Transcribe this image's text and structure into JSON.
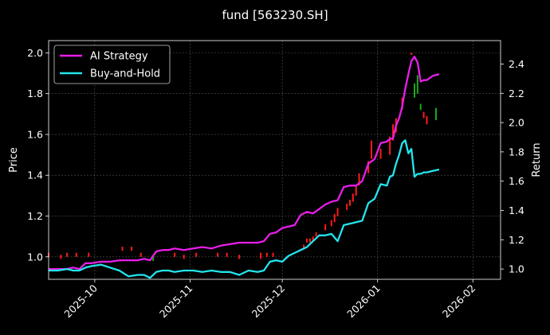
{
  "chart_data": {
    "type": "line",
    "title": "fund [563230.SH]",
    "ylabel_left": "Price",
    "ylabel_right": "Return",
    "xlim": [
      "2025-09-16",
      "2026-02-10"
    ],
    "ylim_left": [
      0.89,
      2.06
    ],
    "ylim_right": [
      0.93,
      2.56
    ],
    "left_ticks": [
      1.0,
      1.2,
      1.4,
      1.6,
      1.8,
      2.0
    ],
    "left_tick_labels": [
      "1.0",
      "1.2",
      "1.4",
      "1.6",
      "1.8",
      "2.0"
    ],
    "right_ticks": [
      1.0,
      1.2,
      1.4,
      1.6,
      1.8,
      2.0,
      2.2,
      2.4
    ],
    "right_tick_labels": [
      "1.0",
      "1.2",
      "1.4",
      "1.6",
      "1.8",
      "2.0",
      "2.2",
      "2.4"
    ],
    "x_ticks": [
      "2025-10-01",
      "2025-11-01",
      "2025-12-01",
      "2026-01-01",
      "2026-02-01"
    ],
    "x_tick_labels": [
      "2025-10",
      "2025-11",
      "2025-12",
      "2026-01",
      "2026-02"
    ],
    "grid": true,
    "legend_position": "top-left",
    "colors": {
      "background": "#000000",
      "text": "#ffffff",
      "grid": "#555555",
      "ai_strategy": "#e81ee8",
      "buy_and_hold": "#22e5ee",
      "candle_up": "#ff1a1a",
      "candle_down": "#1aa81a"
    },
    "series": [
      {
        "name": "AI Strategy",
        "axis": "right",
        "x": [
          "2025-09-16",
          "2025-09-19",
          "2025-09-22",
          "2025-09-24",
          "2025-09-26",
          "2025-09-28",
          "2025-09-30",
          "2025-10-03",
          "2025-10-06",
          "2025-10-09",
          "2025-10-12",
          "2025-10-15",
          "2025-10-17",
          "2025-10-19",
          "2025-10-21",
          "2025-10-23",
          "2025-10-25",
          "2025-10-27",
          "2025-10-30",
          "2025-11-02",
          "2025-11-05",
          "2025-11-08",
          "2025-11-11",
          "2025-11-14",
          "2025-11-17",
          "2025-11-20",
          "2025-11-23",
          "2025-11-25",
          "2025-11-27",
          "2025-11-29",
          "2025-12-01",
          "2025-12-03",
          "2025-12-05",
          "2025-12-07",
          "2025-12-09",
          "2025-12-11",
          "2025-12-13",
          "2025-12-15",
          "2025-12-17",
          "2025-12-19",
          "2025-12-21",
          "2025-12-23",
          "2025-12-25",
          "2025-12-27",
          "2025-12-29",
          "2025-12-31",
          "2026-01-02",
          "2026-01-04",
          "2026-01-05",
          "2026-01-06",
          "2026-01-07",
          "2026-01-08",
          "2026-01-09",
          "2026-01-10",
          "2026-01-11",
          "2026-01-12",
          "2026-01-13",
          "2026-01-14",
          "2026-01-15",
          "2026-01-16",
          "2026-01-17",
          "2026-01-19",
          "2026-01-21"
        ],
        "values": [
          1.0,
          1.0,
          1.0,
          1.01,
          1.0,
          1.04,
          1.04,
          1.05,
          1.05,
          1.06,
          1.06,
          1.06,
          1.07,
          1.06,
          1.12,
          1.13,
          1.13,
          1.14,
          1.13,
          1.14,
          1.15,
          1.14,
          1.16,
          1.17,
          1.18,
          1.18,
          1.18,
          1.19,
          1.24,
          1.25,
          1.28,
          1.29,
          1.3,
          1.37,
          1.39,
          1.38,
          1.41,
          1.44,
          1.46,
          1.47,
          1.56,
          1.57,
          1.57,
          1.6,
          1.72,
          1.75,
          1.86,
          1.87,
          1.89,
          1.89,
          1.98,
          2.03,
          2.11,
          2.23,
          2.33,
          2.42,
          2.45,
          2.41,
          2.28,
          2.29,
          2.29,
          2.32,
          2.33
        ]
      },
      {
        "name": "Buy-and-Hold",
        "axis": "right",
        "x": [
          "2025-09-16",
          "2025-09-19",
          "2025-09-22",
          "2025-09-24",
          "2025-09-26",
          "2025-09-28",
          "2025-09-30",
          "2025-10-03",
          "2025-10-06",
          "2025-10-09",
          "2025-10-12",
          "2025-10-15",
          "2025-10-17",
          "2025-10-19",
          "2025-10-21",
          "2025-10-23",
          "2025-10-25",
          "2025-10-27",
          "2025-10-30",
          "2025-11-02",
          "2025-11-05",
          "2025-11-08",
          "2025-11-11",
          "2025-11-14",
          "2025-11-17",
          "2025-11-20",
          "2025-11-23",
          "2025-11-25",
          "2025-11-27",
          "2025-11-29",
          "2025-12-01",
          "2025-12-03",
          "2025-12-05",
          "2025-12-07",
          "2025-12-09",
          "2025-12-11",
          "2025-12-13",
          "2025-12-15",
          "2025-12-17",
          "2025-12-19",
          "2025-12-21",
          "2025-12-23",
          "2025-12-25",
          "2025-12-27",
          "2025-12-29",
          "2025-12-31",
          "2026-01-02",
          "2026-01-04",
          "2026-01-05",
          "2026-01-06",
          "2026-01-07",
          "2026-01-08",
          "2026-01-09",
          "2026-01-10",
          "2026-01-11",
          "2026-01-12",
          "2026-01-13",
          "2026-01-14",
          "2026-01-15",
          "2026-01-16",
          "2026-01-17",
          "2026-01-19",
          "2026-01-21"
        ],
        "values": [
          0.99,
          0.99,
          1.0,
          0.99,
          0.99,
          1.01,
          1.02,
          1.03,
          1.01,
          0.99,
          0.95,
          0.96,
          0.96,
          0.94,
          0.98,
          0.99,
          0.99,
          0.98,
          0.99,
          0.99,
          0.98,
          0.99,
          0.98,
          0.98,
          0.96,
          0.99,
          0.98,
          0.99,
          1.05,
          1.06,
          1.05,
          1.09,
          1.11,
          1.13,
          1.15,
          1.19,
          1.23,
          1.23,
          1.24,
          1.19,
          1.3,
          1.31,
          1.32,
          1.33,
          1.45,
          1.48,
          1.58,
          1.57,
          1.63,
          1.64,
          1.72,
          1.78,
          1.86,
          1.88,
          1.79,
          1.82,
          1.63,
          1.65,
          1.65,
          1.66,
          1.66,
          1.67,
          1.68
        ]
      }
    ],
    "candles": {
      "axis": "left",
      "x": [
        "2025-09-16",
        "2025-09-20",
        "2025-09-22",
        "2025-09-25",
        "2025-09-29",
        "2025-10-10",
        "2025-10-13",
        "2025-10-16",
        "2025-10-20",
        "2025-10-27",
        "2025-10-30",
        "2025-11-03",
        "2025-11-10",
        "2025-11-13",
        "2025-11-17",
        "2025-11-24",
        "2025-11-26",
        "2025-11-28",
        "2025-12-08",
        "2025-12-09",
        "2025-12-10",
        "2025-12-11",
        "2025-12-12",
        "2025-12-15",
        "2025-12-17",
        "2025-12-18",
        "2025-12-19",
        "2025-12-22",
        "2025-12-23",
        "2025-12-24",
        "2025-12-25",
        "2025-12-26",
        "2025-12-29",
        "2025-12-30",
        "2026-01-02",
        "2026-01-05",
        "2026-01-06",
        "2026-01-07",
        "2026-01-09",
        "2026-01-12",
        "2026-01-13",
        "2026-01-14",
        "2026-01-15",
        "2026-01-16",
        "2026-01-17",
        "2026-01-20"
      ],
      "open": [
        1.0,
        0.99,
        1.0,
        1.0,
        1.0,
        1.03,
        1.03,
        1.0,
        1.0,
        1.0,
        0.99,
        1.0,
        1.0,
        1.0,
        0.99,
        0.99,
        1.0,
        1.0,
        1.04,
        1.07,
        1.07,
        1.08,
        1.1,
        1.13,
        1.15,
        1.17,
        1.2,
        1.23,
        1.25,
        1.27,
        1.3,
        1.35,
        1.41,
        1.48,
        1.48,
        1.5,
        1.57,
        1.61,
        1.72,
        1.99,
        1.85,
        1.89,
        1.75,
        1.68,
        1.65,
        1.73
      ],
      "close": [
        1.02,
        1.01,
        1.02,
        1.02,
        1.02,
        1.05,
        1.05,
        1.02,
        0.98,
        1.02,
        1.01,
        1.02,
        1.02,
        1.02,
        1.01,
        1.02,
        1.02,
        1.02,
        1.06,
        1.09,
        1.09,
        1.1,
        1.12,
        1.16,
        1.18,
        1.21,
        1.24,
        1.26,
        1.28,
        1.31,
        1.35,
        1.41,
        1.47,
        1.57,
        1.53,
        1.59,
        1.65,
        1.68,
        1.78,
        2.0,
        1.78,
        1.8,
        1.72,
        1.71,
        1.69,
        1.67
      ]
    }
  }
}
